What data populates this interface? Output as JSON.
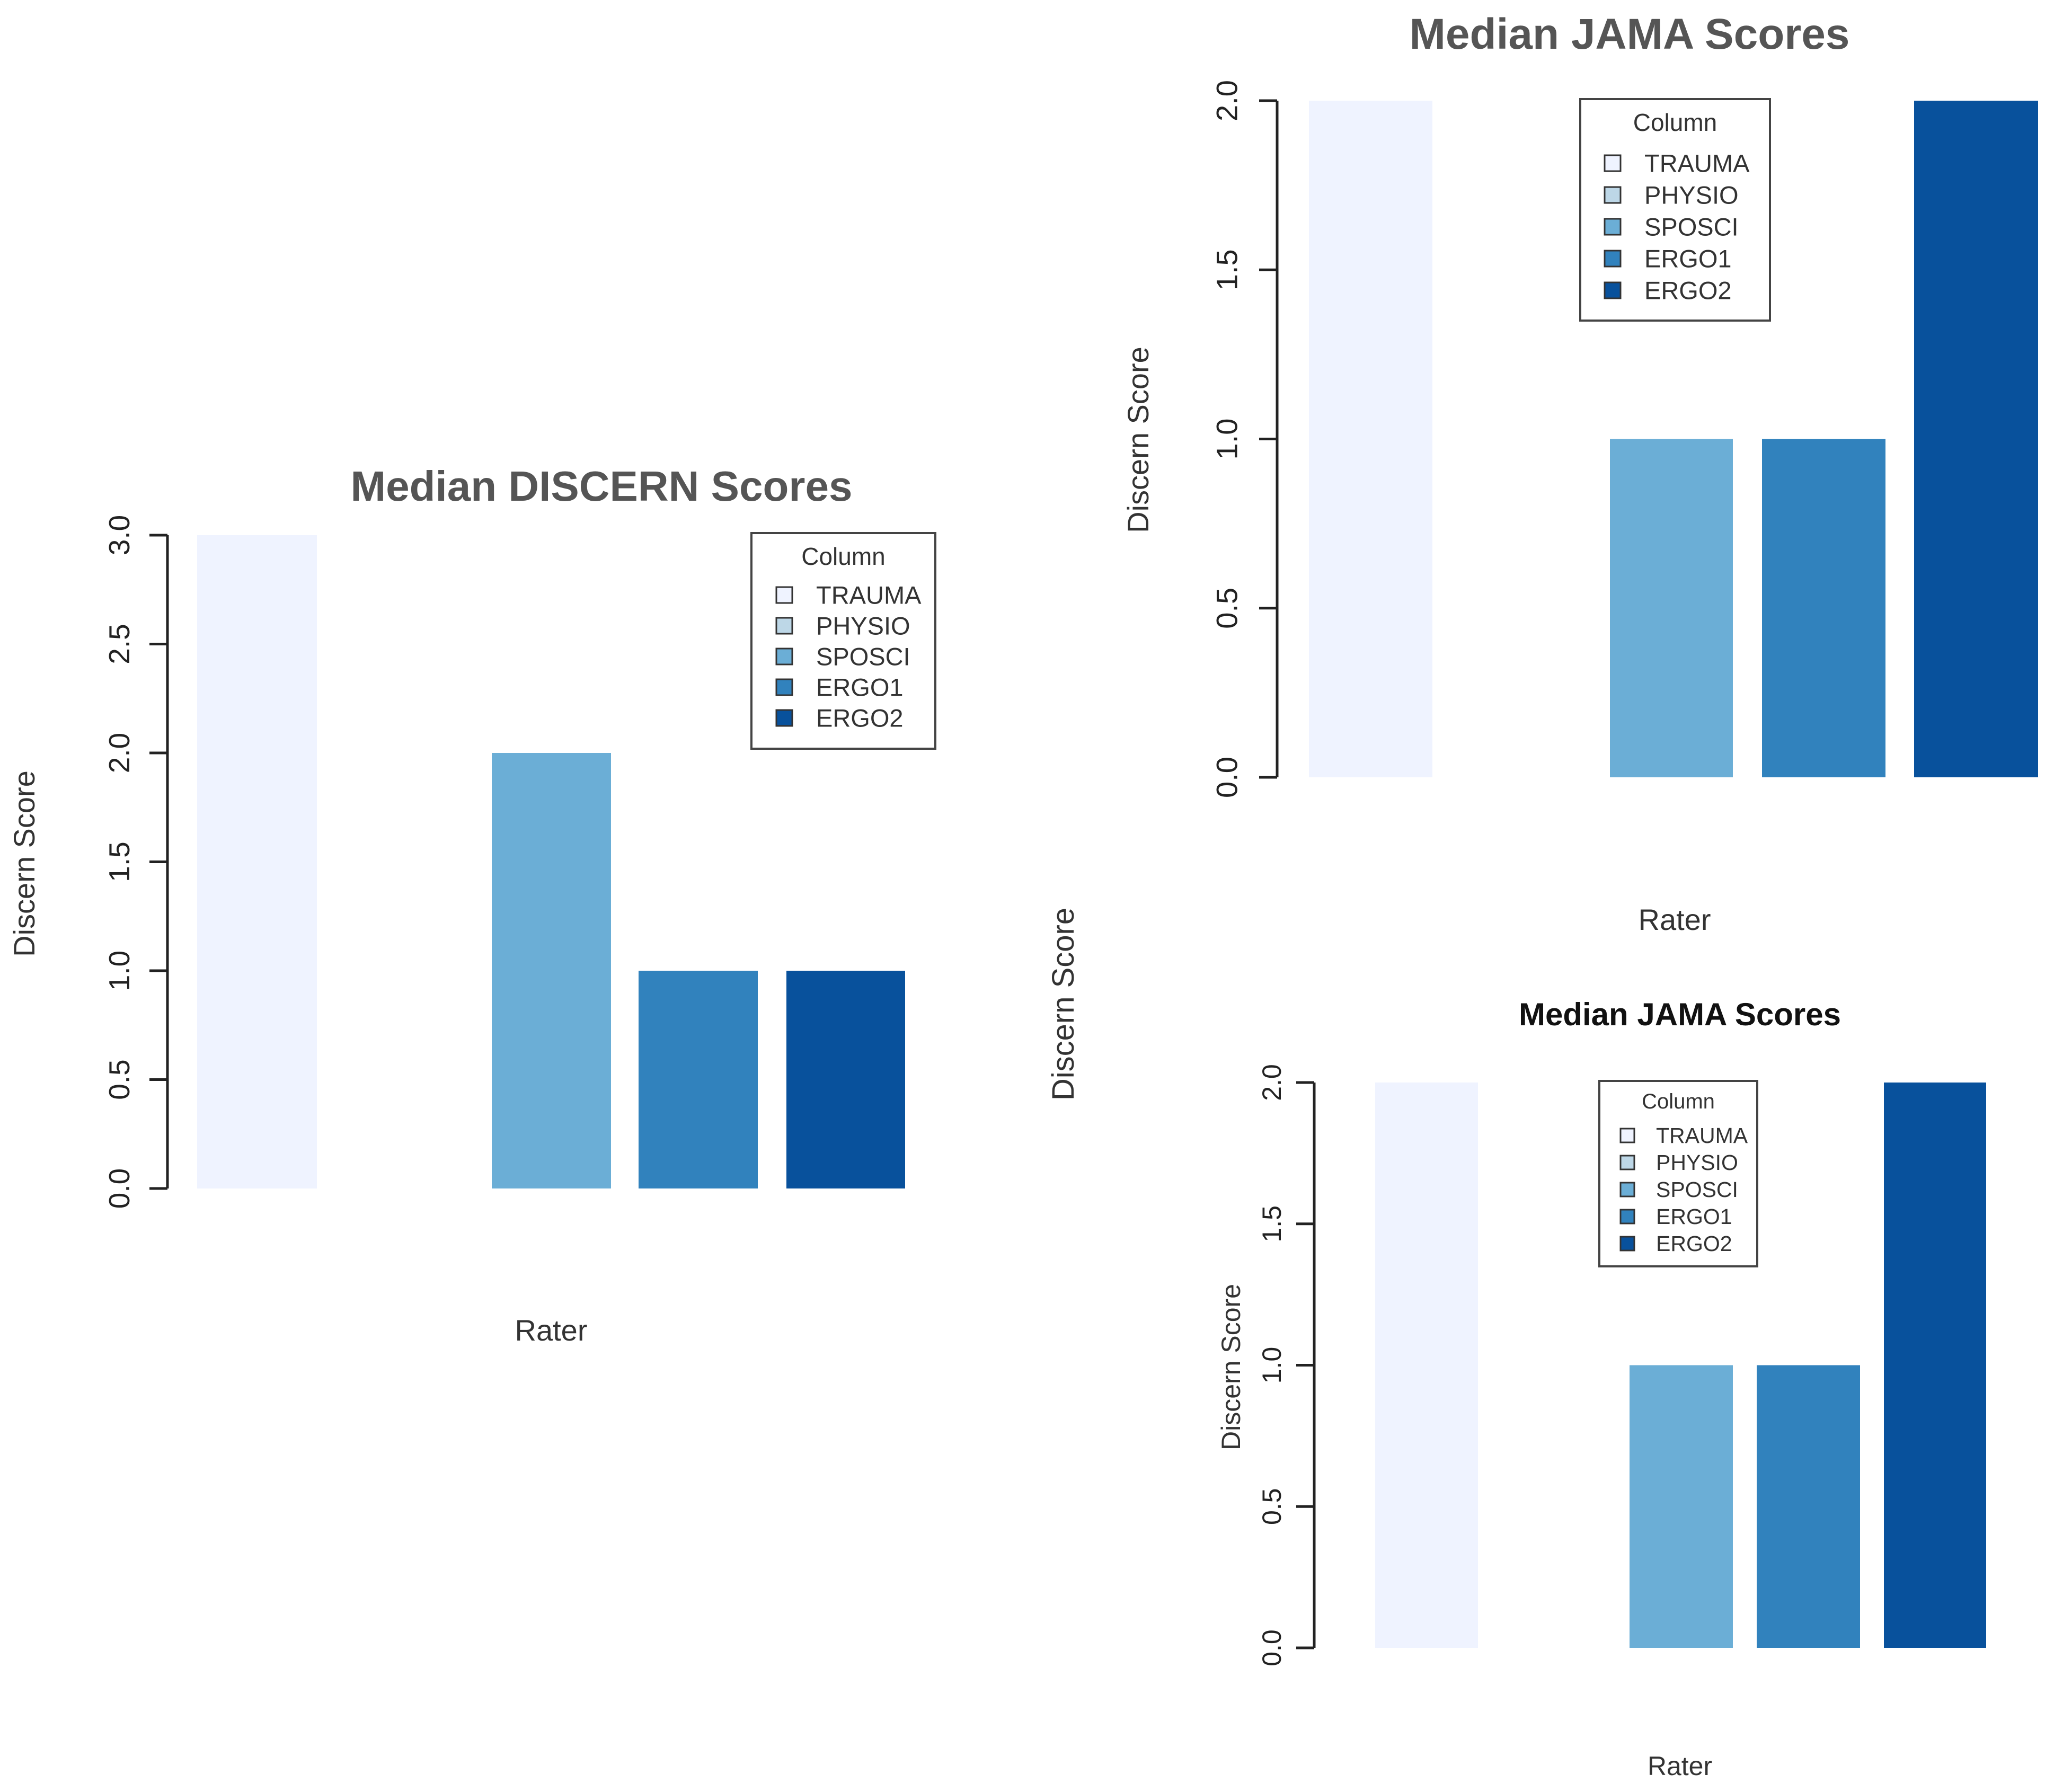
{
  "stray_labels": [
    "Discern Score"
  ],
  "chart_data": [
    {
      "type": "bar",
      "title": "Median DISCERN Scores",
      "xlabel": "Rater",
      "ylabel": "Discern Score",
      "ylim": [
        0,
        3
      ],
      "yticks": [
        "0.0",
        "0.5",
        "1.0",
        "1.5",
        "2.0",
        "2.5",
        "3.0"
      ],
      "categories": [
        "TRAUMA",
        "PHYSIO",
        "SPOSCI",
        "ERGO1",
        "ERGO2"
      ],
      "values": [
        3,
        0,
        2,
        1,
        1
      ],
      "colors": [
        "#eff3ff",
        "#bdd7e7",
        "#6baed6",
        "#3182bd",
        "#08519c"
      ],
      "legend": {
        "title": "Column",
        "placement": "top-right"
      },
      "grid": false
    },
    {
      "type": "bar",
      "title": "Median JAMA Scores",
      "xlabel": "Rater",
      "ylabel": "Discern Score",
      "ylim": [
        0,
        2
      ],
      "yticks": [
        "0.0",
        "0.5",
        "1.0",
        "1.5",
        "2.0"
      ],
      "categories": [
        "TRAUMA",
        "PHYSIO",
        "SPOSCI",
        "ERGO1",
        "ERGO2"
      ],
      "values": [
        2,
        0,
        1,
        1,
        2
      ],
      "colors": [
        "#eff3ff",
        "#bdd7e7",
        "#6baed6",
        "#3182bd",
        "#08519c"
      ],
      "legend": {
        "title": "Column",
        "placement": "top-center"
      },
      "grid": false
    },
    {
      "type": "bar",
      "title": "Median JAMA Scores",
      "xlabel": "Rater",
      "ylabel": "Discern Score",
      "ylim": [
        0,
        2
      ],
      "yticks": [
        "0.0",
        "0.5",
        "1.0",
        "1.5",
        "2.0"
      ],
      "categories": [
        "TRAUMA",
        "PHYSIO",
        "SPOSCI",
        "ERGO1",
        "ERGO2"
      ],
      "values": [
        2,
        0,
        1,
        1,
        2
      ],
      "colors": [
        "#eff3ff",
        "#bdd7e7",
        "#6baed6",
        "#3182bd",
        "#08519c"
      ],
      "legend": {
        "title": "Column",
        "placement": "top-center"
      },
      "grid": false
    }
  ]
}
